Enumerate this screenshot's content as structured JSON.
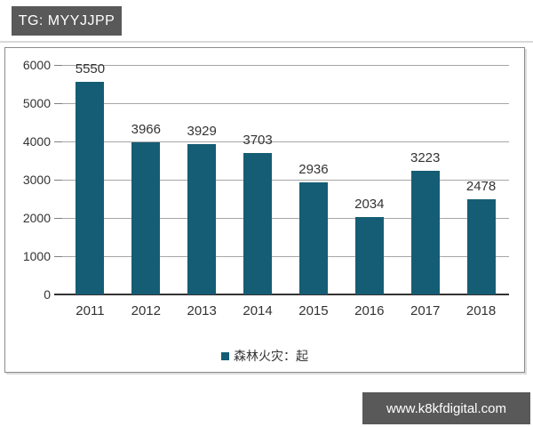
{
  "header": {
    "badge_label": "TG: MYYJJPP"
  },
  "footer": {
    "watermark": "www.k8kfdigital.com"
  },
  "colors": {
    "bar": "#155d74",
    "badge_bg": "#595959",
    "grid": "#a6a6a6",
    "axis": "#333333"
  },
  "chart_data": {
    "type": "bar",
    "categories": [
      "2011",
      "2012",
      "2013",
      "2014",
      "2015",
      "2016",
      "2017",
      "2018"
    ],
    "values": [
      5550,
      3966,
      3929,
      3703,
      2936,
      2034,
      3223,
      2478
    ],
    "title": "",
    "xlabel": "",
    "ylabel": "",
    "ylim": [
      0,
      6000
    ],
    "ytick_step": 1000,
    "grid": true,
    "legend": "森林火灾：起",
    "legend_position": "bottom",
    "bar_color": "#155d74"
  }
}
